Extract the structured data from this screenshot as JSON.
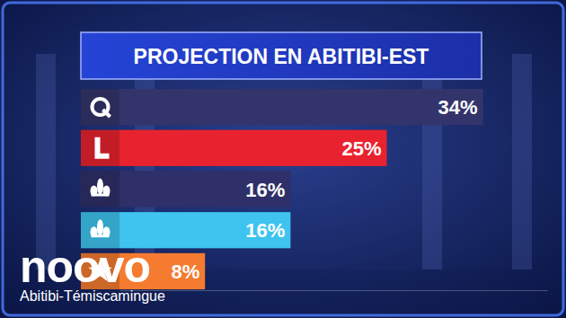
{
  "chart_data": {
    "type": "bar",
    "orientation": "horizontal",
    "title": "PROJECTION EN ABITIBI-EST",
    "categories": [
      null,
      null,
      null,
      null,
      null
    ],
    "values": [
      34,
      25,
      16,
      16,
      8
    ],
    "value_labels": [
      "34%",
      "25%",
      "16%",
      "16%",
      "8%"
    ],
    "colors": [
      "#34346c",
      "#e8232f",
      "#2f2f69",
      "#3ec4ef",
      "#f47b2f"
    ],
    "data_labels": true,
    "xlim": [
      0,
      40
    ],
    "xticks": [],
    "tick_labels": false,
    "grid": false,
    "annotations": [
      "noovo",
      "Abitibi-Témiscamingue"
    ]
  }
}
